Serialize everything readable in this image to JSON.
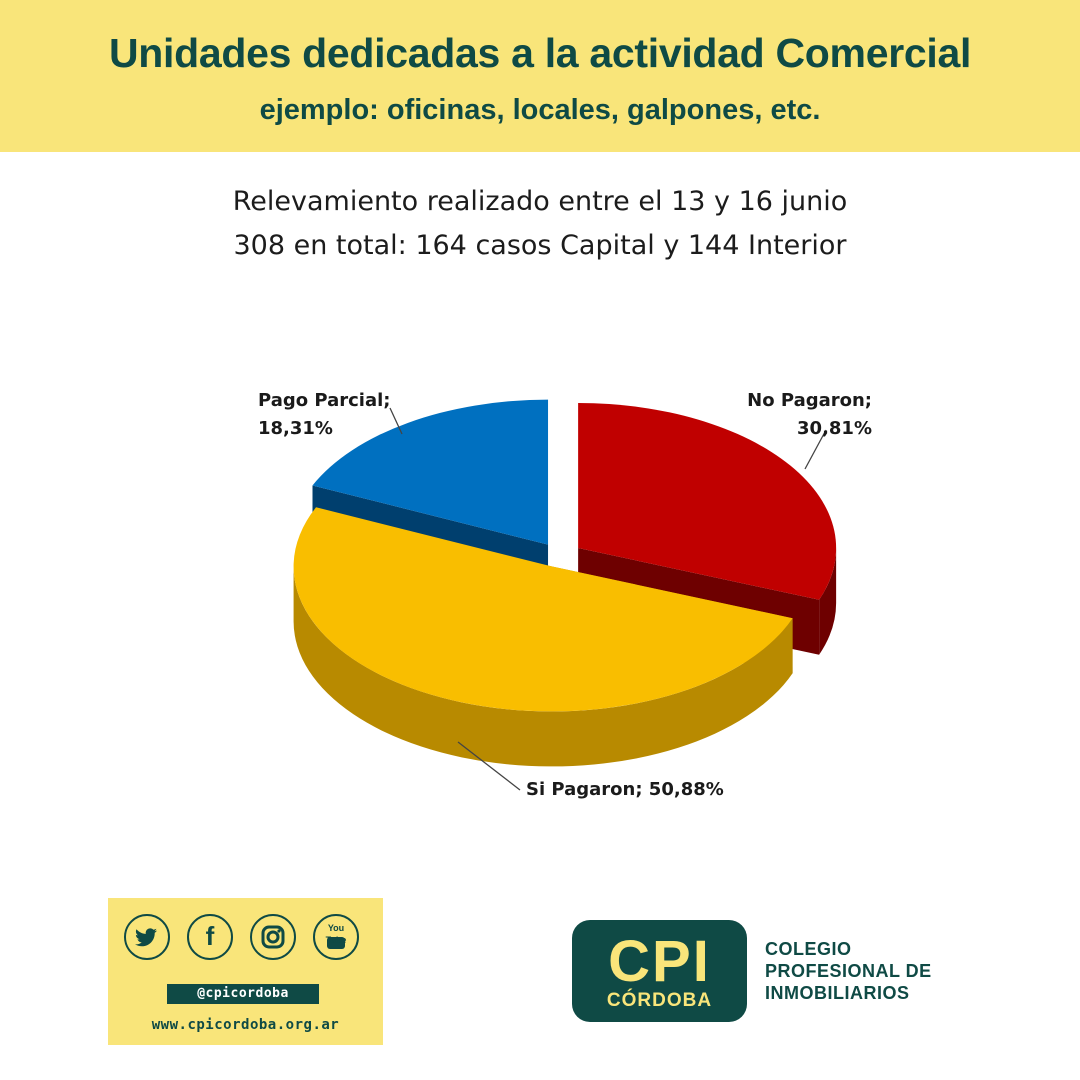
{
  "header": {
    "title": "Unidades dedicadas a la actividad Comercial",
    "subtitle": "ejemplo: oficinas, locales, galpones, etc."
  },
  "survey": {
    "line1": "Relevamiento realizado entre el 13 y 16 junio",
    "line2": "308 en total: 164 casos Capital y 144 Interior"
  },
  "chart_data": {
    "type": "pie",
    "style": "3d-exploded",
    "legend": "none",
    "slices": [
      {
        "label": "No Pagaron",
        "value": 30.81,
        "display": "30,81%",
        "color": "#c00000",
        "side": "#6e0000"
      },
      {
        "label": "Si Pagaron",
        "value": 50.88,
        "display": "50,88%",
        "color": "#f9be00",
        "side": "#b88a00"
      },
      {
        "label": "Pago Parcial",
        "value": 18.31,
        "display": "18,31%",
        "color": "#0070c0",
        "side": "#003f6e"
      }
    ]
  },
  "social": {
    "icons": [
      "twitter-icon",
      "facebook-icon",
      "instagram-icon",
      "youtube-icon"
    ],
    "youtube_text": "You Tube",
    "facebook_glyph": "f",
    "handle": "@cpicordoba",
    "website": "www.cpicordoba.org.ar"
  },
  "logo": {
    "big": "CPI",
    "small": "CÓRDOBA",
    "org_line1": "COLEGIO",
    "org_line2": "PROFESIONAL DE",
    "org_line3": "INMOBILIARIOS"
  },
  "colors": {
    "banner": "#f9e57a",
    "brand_dark": "#0f4a45"
  }
}
